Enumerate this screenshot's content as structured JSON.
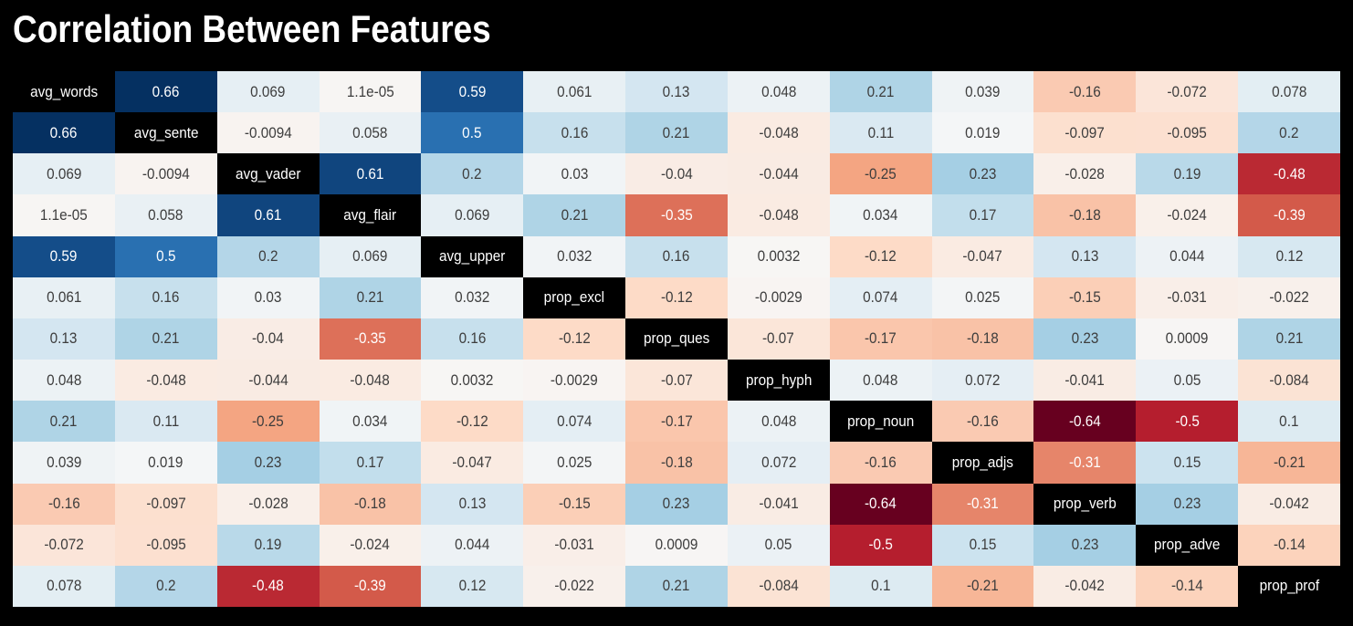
{
  "colors": {
    "page_background": "#000000",
    "diagonal_cell_background": "#000000",
    "diagonal_text": "#ffffff",
    "light_value_text": "#ffffff",
    "dark_value_text": "#3d3d3d",
    "colormap_stops": [
      "#67001f",
      "#b2182b",
      "#d6604d",
      "#f4a582",
      "#fddbc7",
      "#f7f7f7",
      "#d1e5f0",
      "#92c5de",
      "#4393c3",
      "#2166ac",
      "#053061"
    ]
  },
  "chart_data": {
    "type": "heatmap",
    "title": "Correlation Between Features",
    "colormap": "RdBu",
    "vmin": -0.64,
    "vmax": 0.66,
    "legend_position": "none",
    "grid": false,
    "white_text_abs_threshold": 0.3,
    "categories": [
      "avg_words",
      "avg_sente",
      "avg_vader",
      "avg_flair",
      "avg_upper",
      "prop_excl",
      "prop_ques",
      "prop_hyph",
      "prop_noun",
      "prop_adjs",
      "prop_verb",
      "prop_adve",
      "prop_prof"
    ],
    "matrix": [
      [
        "avg_words",
        "0.66",
        "0.069",
        "1.1e-05",
        "0.59",
        "0.061",
        "0.13",
        "0.048",
        "0.21",
        "0.039",
        "-0.16",
        "-0.072",
        "0.078"
      ],
      [
        "0.66",
        "avg_sente",
        "-0.0094",
        "0.058",
        "0.5",
        "0.16",
        "0.21",
        "-0.048",
        "0.11",
        "0.019",
        "-0.097",
        "-0.095",
        "0.2"
      ],
      [
        "0.069",
        "-0.0094",
        "avg_vader",
        "0.61",
        "0.2",
        "0.03",
        "-0.04",
        "-0.044",
        "-0.25",
        "0.23",
        "-0.028",
        "0.19",
        "-0.48"
      ],
      [
        "1.1e-05",
        "0.058",
        "0.61",
        "avg_flair",
        "0.069",
        "0.21",
        "-0.35",
        "-0.048",
        "0.034",
        "0.17",
        "-0.18",
        "-0.024",
        "-0.39"
      ],
      [
        "0.59",
        "0.5",
        "0.2",
        "0.069",
        "avg_upper",
        "0.032",
        "0.16",
        "0.0032",
        "-0.12",
        "-0.047",
        "0.13",
        "0.044",
        "0.12"
      ],
      [
        "0.061",
        "0.16",
        "0.03",
        "0.21",
        "0.032",
        "prop_excl",
        "-0.12",
        "-0.0029",
        "0.074",
        "0.025",
        "-0.15",
        "-0.031",
        "-0.022"
      ],
      [
        "0.13",
        "0.21",
        "-0.04",
        "-0.35",
        "0.16",
        "-0.12",
        "prop_ques",
        "-0.07",
        "-0.17",
        "-0.18",
        "0.23",
        "0.0009",
        "0.21"
      ],
      [
        "0.048",
        "-0.048",
        "-0.044",
        "-0.048",
        "0.0032",
        "-0.0029",
        "-0.07",
        "prop_hyph",
        "0.048",
        "0.072",
        "-0.041",
        "0.05",
        "-0.084"
      ],
      [
        "0.21",
        "0.11",
        "-0.25",
        "0.034",
        "-0.12",
        "0.074",
        "-0.17",
        "0.048",
        "prop_noun",
        "-0.16",
        "-0.64",
        "-0.5",
        "0.1"
      ],
      [
        "0.039",
        "0.019",
        "0.23",
        "0.17",
        "-0.047",
        "0.025",
        "-0.18",
        "0.072",
        "-0.16",
        "prop_adjs",
        "-0.31",
        "0.15",
        "-0.21"
      ],
      [
        "-0.16",
        "-0.097",
        "-0.028",
        "-0.18",
        "0.13",
        "-0.15",
        "0.23",
        "-0.041",
        "-0.64",
        "-0.31",
        "prop_verb",
        "0.23",
        "-0.042"
      ],
      [
        "-0.072",
        "-0.095",
        "0.19",
        "-0.024",
        "0.044",
        "-0.031",
        "0.0009",
        "0.05",
        "-0.5",
        "0.15",
        "0.23",
        "prop_adve",
        "-0.14"
      ],
      [
        "0.078",
        "0.2",
        "-0.48",
        "-0.39",
        "0.12",
        "-0.022",
        "0.21",
        "-0.084",
        "0.1",
        "-0.21",
        "-0.042",
        "-0.14",
        "prop_prof"
      ]
    ]
  }
}
